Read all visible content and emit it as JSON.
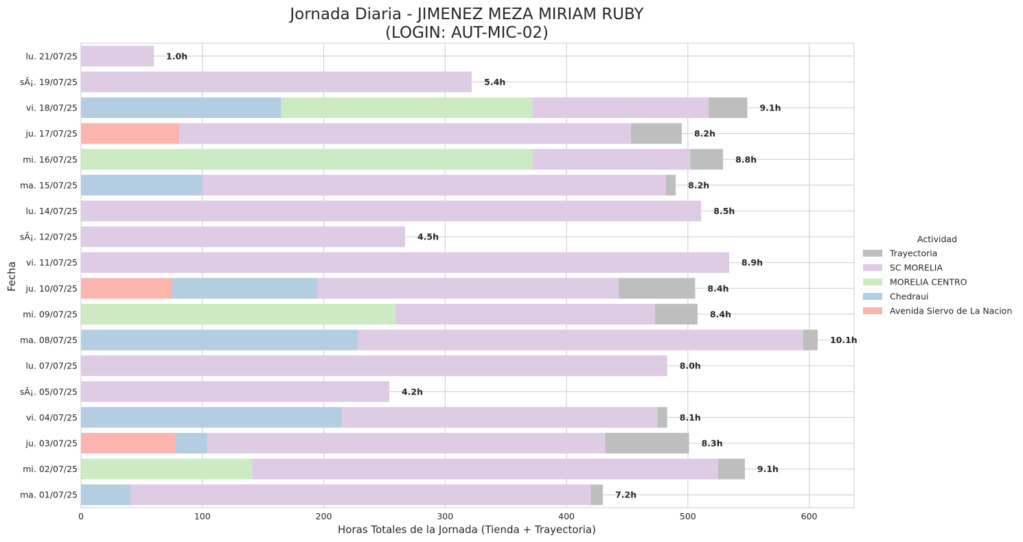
{
  "chart_data": {
    "type": "bar",
    "orientation": "horizontal",
    "stacked": true,
    "title": "Jornada Diaria - JIMENEZ MEZA MIRIAM RUBY",
    "subtitle": "(LOGIN: AUT-MIC-02)",
    "xlabel": "Horas Totales de la Jornada (Tienda + Trayectoria)",
    "ylabel": "Fecha",
    "xlim": [
      0,
      637
    ],
    "xticks": [
      0,
      100,
      200,
      300,
      400,
      500,
      600
    ],
    "grid": true,
    "legend_title": "Actividad",
    "legend_position": "right",
    "categories": [
      "ma. 01/07/25",
      "mi. 02/07/25",
      "ju. 03/07/25",
      "vi. 04/07/25",
      "sÃ¡. 05/07/25",
      "lu. 07/07/25",
      "ma. 08/07/25",
      "mi. 09/07/25",
      "ju. 10/07/25",
      "vi. 11/07/25",
      "sÃ¡. 12/07/25",
      "lu. 14/07/25",
      "ma. 15/07/25",
      "mi. 16/07/25",
      "ju. 17/07/25",
      "vi. 18/07/25",
      "sÃ¡. 19/07/25",
      "lu. 21/07/25"
    ],
    "series": [
      {
        "name": "Avenida Siervo de La Nacion",
        "color": "#fbb4ae",
        "values": [
          0,
          0,
          78,
          0,
          0,
          0,
          0,
          0,
          75,
          0,
          0,
          0,
          0,
          0,
          81,
          0,
          0,
          0
        ]
      },
      {
        "name": "Chedraui",
        "color": "#b3cde3",
        "values": [
          41,
          0,
          26,
          215,
          0,
          0,
          228,
          0,
          120,
          0,
          0,
          0,
          100,
          0,
          0,
          165,
          0,
          0
        ]
      },
      {
        "name": "MORELIA CENTRO",
        "color": "#ccebc5",
        "values": [
          0,
          141,
          0,
          0,
          0,
          0,
          0,
          259,
          0,
          0,
          0,
          0,
          0,
          372,
          0,
          207,
          0,
          0
        ]
      },
      {
        "name": "SC MORELIA",
        "color": "#decbe4",
        "values": [
          379,
          384,
          328,
          260,
          254,
          483,
          367,
          214,
          248,
          534,
          267,
          511,
          382,
          130,
          372,
          145,
          322,
          60
        ]
      },
      {
        "name": "Trayectoria",
        "color": "#bebebe",
        "values": [
          10,
          22,
          69,
          8,
          0,
          0,
          12,
          35,
          63,
          0,
          0,
          0,
          8,
          27,
          42,
          32,
          0,
          0
        ]
      }
    ],
    "data_labels": [
      "7.2h",
      "9.1h",
      "8.3h",
      "8.1h",
      "4.2h",
      "8.0h",
      "10.1h",
      "8.4h",
      "8.4h",
      "8.9h",
      "4.5h",
      "8.5h",
      "8.2h",
      "8.8h",
      "8.2h",
      "9.1h",
      "5.4h",
      "1.0h"
    ],
    "legend_order": [
      "Trayectoria",
      "SC MORELIA",
      "MORELIA CENTRO",
      "Chedraui",
      "Avenida Siervo de La Nacion"
    ]
  }
}
